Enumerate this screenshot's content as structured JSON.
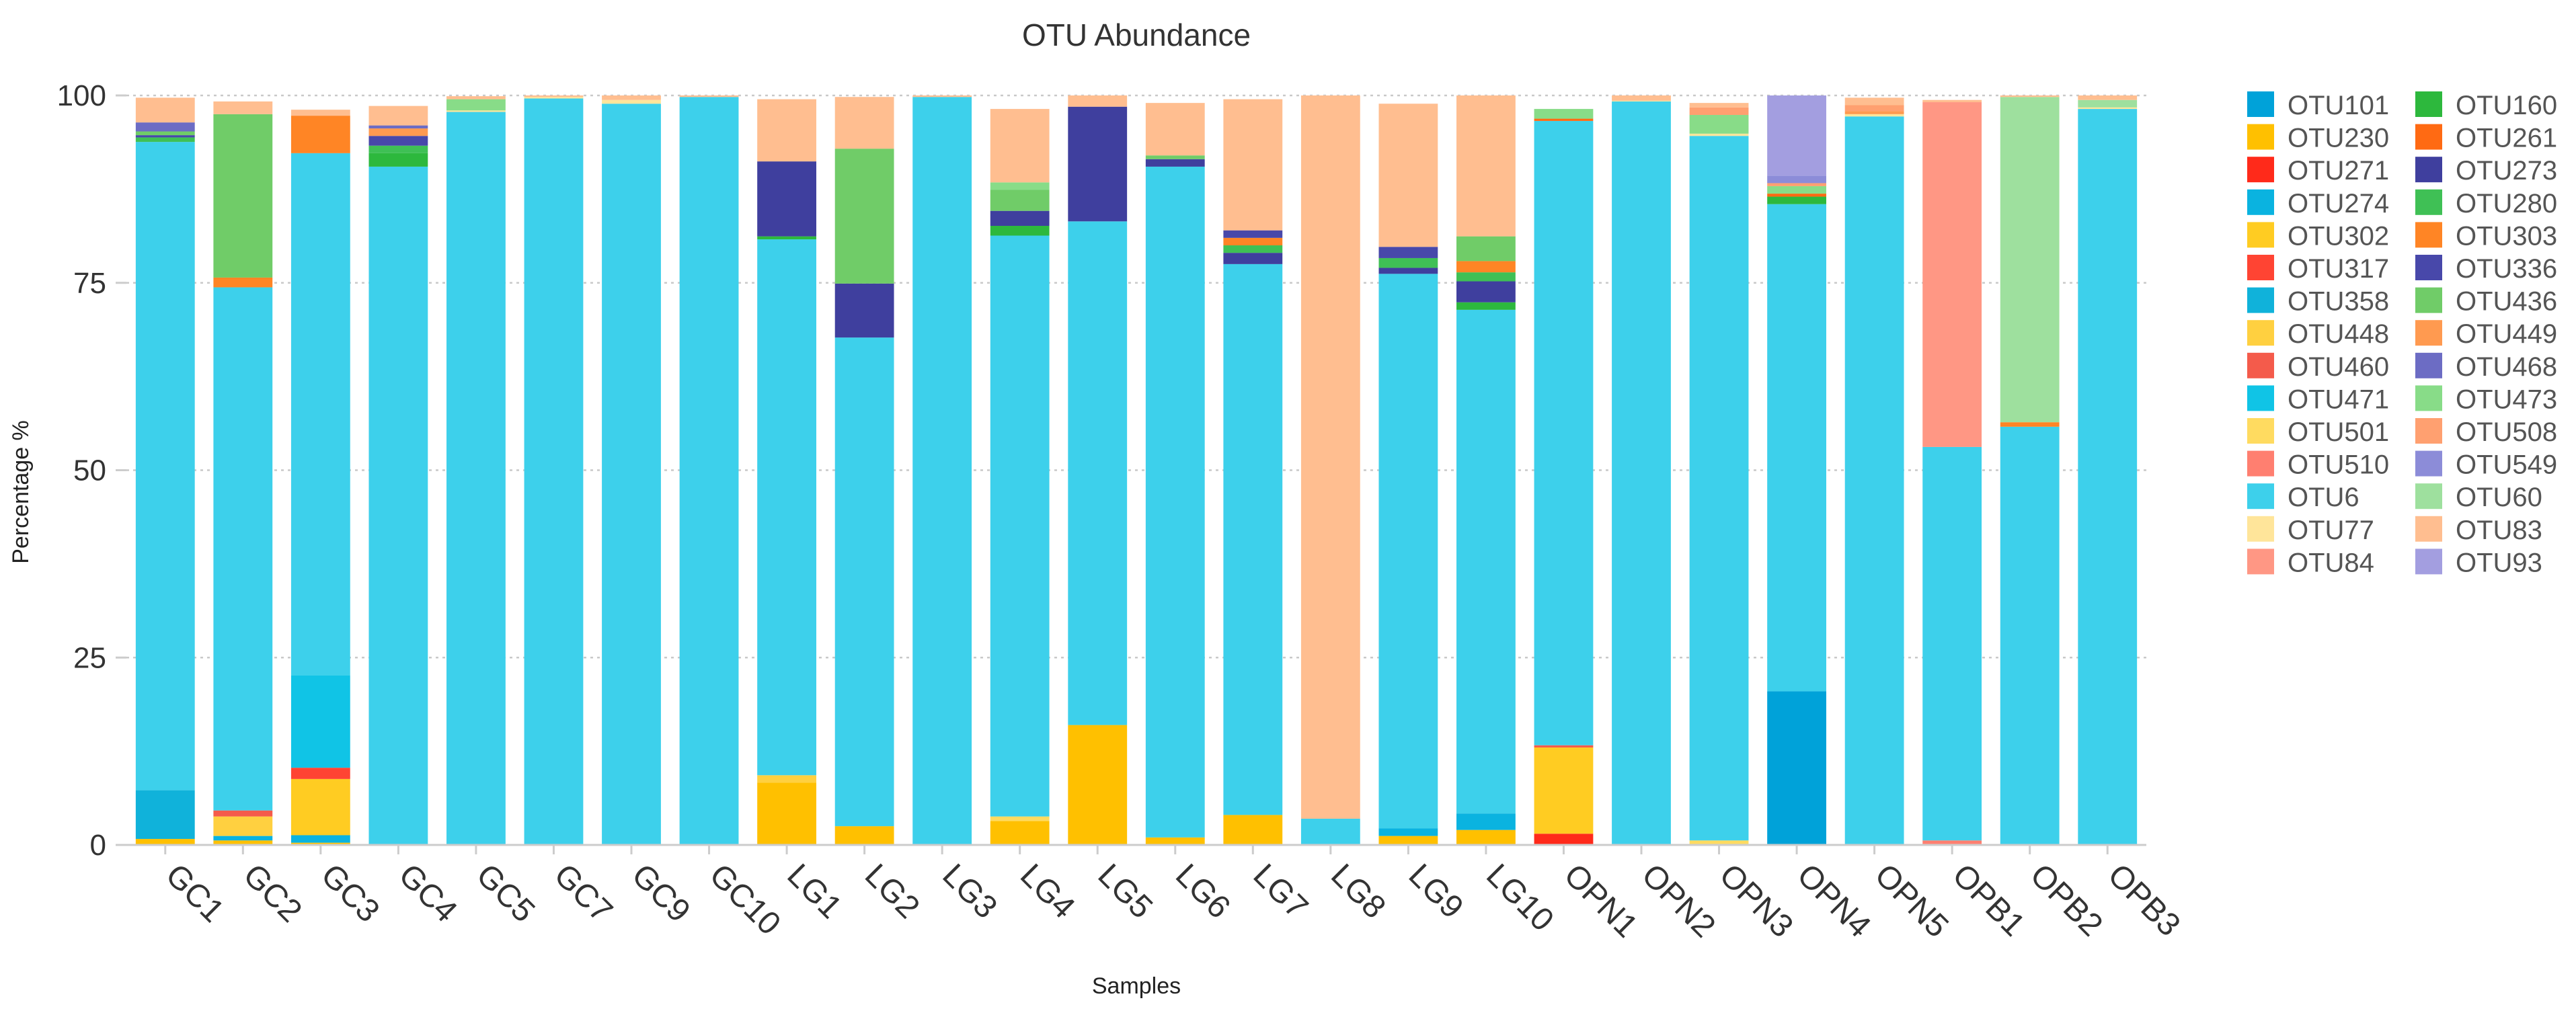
{
  "chart_data": {
    "type": "bar",
    "stacked": true,
    "title": "OTU Abundance",
    "xlabel": "Samples",
    "ylabel": "Percentage %",
    "ylim": [
      0,
      100
    ],
    "yticks": [
      0,
      25,
      50,
      75,
      100
    ],
    "grid": true,
    "legend_position": "right",
    "categories": [
      "GC1",
      "GC2",
      "GC3",
      "GC4",
      "GC5",
      "GC7",
      "GC9",
      "GC10",
      "LG1",
      "LG2",
      "LG3",
      "LG4",
      "LG5",
      "LG6",
      "LG7",
      "LG8",
      "LG9",
      "LG10",
      "OPN1",
      "OPN2",
      "OPN3",
      "OPN4",
      "OPN5",
      "OPB1",
      "OPB2",
      "OPB3"
    ],
    "series": [
      {
        "name": "OTU101",
        "color": "#00a2d9",
        "values": {
          "OPN4": 20.5
        }
      },
      {
        "name": "OTU230",
        "color": "#ffc000",
        "values": {
          "GC1": 0.8,
          "GC2": 0.6,
          "GC3": 0.3,
          "LG1": 8.3,
          "LG2": 2.5,
          "LG4": 3.2,
          "LG5": 16,
          "LG6": 1,
          "LG7": 4,
          "LG9": 1.2,
          "LG10": 2
        }
      },
      {
        "name": "OTU271",
        "color": "#ff2a1a",
        "values": {
          "OPN1": 1.5
        }
      },
      {
        "name": "OTU274",
        "color": "#0ab3e0",
        "values": {
          "GC2": 0.6,
          "GC3": 1,
          "LG9": 1,
          "LG10": 2.2
        }
      },
      {
        "name": "OTU302",
        "color": "#ffcc22",
        "values": {
          "GC3": 7.5,
          "OPN1": 11.5
        }
      },
      {
        "name": "OTU317",
        "color": "#ff4433",
        "values": {
          "GC3": 1.5
        }
      },
      {
        "name": "OTU358",
        "color": "#10b2da",
        "values": {
          "GC1": 6.5
        }
      },
      {
        "name": "OTU448",
        "color": "#ffd040",
        "values": {
          "GC2": 2.6,
          "LG1": 1
        }
      },
      {
        "name": "OTU460",
        "color": "#f45b4b",
        "values": {
          "GC2": 0.8,
          "OPN1": 0.3
        }
      },
      {
        "name": "OTU471",
        "color": "#10c4e6",
        "values": {
          "GC3": 12.3
        }
      },
      {
        "name": "OTU501",
        "color": "#ffdb60",
        "values": {
          "LG4": 0.6,
          "OPN3": 0.6
        }
      },
      {
        "name": "OTU510",
        "color": "#ff7f70",
        "values": {
          "OPB1": 0.6
        }
      },
      {
        "name": "OTU6",
        "color": "#3dd0eb",
        "values": {
          "GC1": 86.5,
          "GC2": 69.8,
          "GC3": 69.7,
          "GC4": 90.5,
          "GC5": 97.8,
          "GC7": 99.6,
          "GC9": 98.9,
          "GC10": 99.8,
          "LG1": 71.5,
          "LG2": 65.2,
          "LG3": 99.8,
          "LG4": 77.5,
          "LG5": 67.2,
          "LG6": 89.5,
          "LG7": 73.5,
          "LG8": 3.5,
          "LG9": 74,
          "LG10": 67.2,
          "OPN1": 83.3,
          "OPN2": 99.2,
          "OPN3": 94,
          "OPN4": 65,
          "OPN5": 97.2,
          "OPB1": 52.5,
          "OPB2": 55.8,
          "OPB3": 98.2
        }
      },
      {
        "name": "OTU77",
        "color": "#ffe59a",
        "values": {
          "GC5": 0.2,
          "GC7": 0.2,
          "GC9": 0.5,
          "OPN2": 0.1,
          "OPN3": 0.3,
          "OPN5": 0.3,
          "OPB3": 0.2
        }
      },
      {
        "name": "OTU84",
        "color": "#ff9784",
        "values": {
          "OPB1": 46
        }
      },
      {
        "name": "OTU160",
        "color": "#2db83d",
        "values": {
          "GC4": 1.8,
          "LG1": 0.4,
          "LG4": 1.3,
          "LG10": 1,
          "OPN4": 1
        }
      },
      {
        "name": "OTU261",
        "color": "#ff6a13",
        "values": {
          "OPN4": 0.4,
          "OPN1": 0.3
        }
      },
      {
        "name": "OTU273",
        "color": "#3f3f9e",
        "values": {
          "LG1": 10,
          "LG2": 7.2,
          "LG4": 2,
          "LG5": 15.3,
          "LG6": 1,
          "LG7": 1.5,
          "LG9": 0.8,
          "LG10": 2.8
        }
      },
      {
        "name": "OTU280",
        "color": "#3fc055",
        "values": {
          "GC1": 0.6,
          "GC4": 1,
          "LG7": 1,
          "LG9": 1.3,
          "LG10": 1.2
        }
      },
      {
        "name": "OTU303",
        "color": "#ff8525",
        "values": {
          "GC2": 1.3,
          "GC3": 5,
          "LG7": 1,
          "LG10": 1.5,
          "OPB2": 0.6
        }
      },
      {
        "name": "OTU336",
        "color": "#4848aa",
        "values": {
          "GC1": 0.3,
          "GC4": 1.3,
          "LG7": 1,
          "LG9": 1.5
        }
      },
      {
        "name": "OTU436",
        "color": "#70cc68",
        "values": {
          "GC1": 0.5,
          "GC2": 21.8,
          "LG2": 18,
          "LG4": 2.8,
          "LG6": 0.5,
          "LG10": 3.3
        }
      },
      {
        "name": "OTU449",
        "color": "#ff9a50",
        "values": {
          "GC4": 1,
          "OPN5": 0.4
        }
      },
      {
        "name": "OTU468",
        "color": "#6c6cc4",
        "values": {
          "GC1": 1.2,
          "GC4": 0.4
        }
      },
      {
        "name": "OTU473",
        "color": "#88dc88",
        "values": {
          "GC5": 1.5,
          "LG4": 1,
          "OPN1": 1.3,
          "OPN3": 2.5,
          "OPN4": 1
        }
      },
      {
        "name": "OTU508",
        "color": "#ffa070",
        "values": {
          "OPN3": 1,
          "OPN4": 0.4,
          "OPN5": 0.8
        }
      },
      {
        "name": "OTU549",
        "color": "#8c8cd8",
        "values": {
          "OPN4": 1
        }
      },
      {
        "name": "OTU60",
        "color": "#9ee09e",
        "values": {
          "OPB2": 43.4,
          "OPB3": 1
        }
      },
      {
        "name": "OTU83",
        "color": "#ffbe90",
        "values": {
          "GC1": 3.3,
          "GC2": 1.7,
          "GC3": 0.8,
          "GC4": 2.6,
          "GC5": 0.4,
          "GC7": 0.2,
          "GC9": 0.6,
          "GC10": 0.2,
          "LG1": 8.3,
          "LG2": 6.9,
          "LG3": 0.2,
          "LG4": 9.8,
          "LG5": 1.5,
          "LG6": 7,
          "LG7": 17.5,
          "LG8": 96.5,
          "LG9": 19.1,
          "LG10": 18.8,
          "OPN2": 0.7,
          "OPN3": 0.6,
          "OPN5": 1,
          "OPB1": 0.3,
          "OPB2": 0.2,
          "OPB3": 0.6
        }
      },
      {
        "name": "OTU93",
        "color": "#a39ee0",
        "values": {
          "OPN4": 10.7
        }
      }
    ]
  }
}
